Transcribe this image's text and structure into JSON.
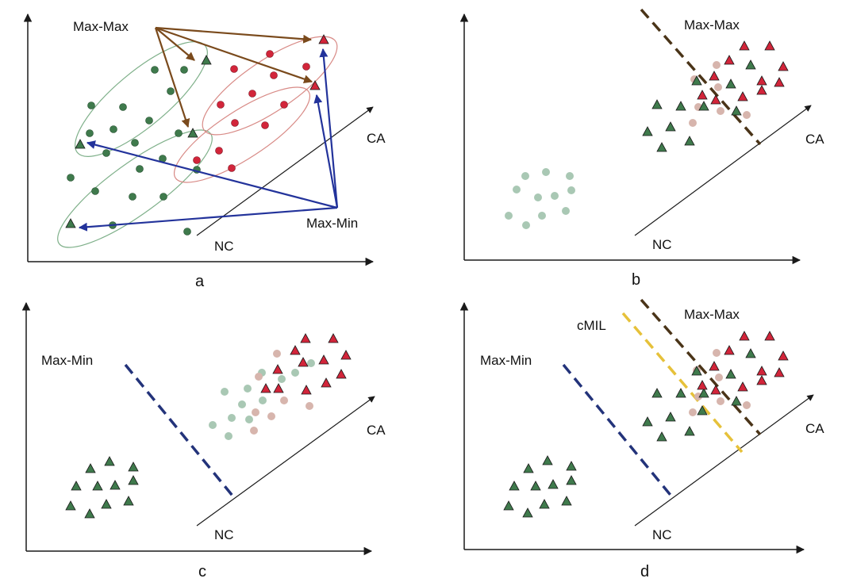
{
  "colors": {
    "axis": "#1a1a1a",
    "green_marker": "#3f7a4c",
    "red_marker": "#d2253a",
    "pale_green": "#a9c8b4",
    "pale_pink": "#d7b5ad",
    "maxmax_arrow": "#7a4a1c",
    "maxmin_arrow": "#23339b",
    "green_ellipse": "#7fb08a",
    "red_ellipse": "#d88a86",
    "maxmin_dash": "#23337a",
    "maxmax_dash": "#4a3418",
    "cmil_dash": "#e6c13a"
  },
  "panels": [
    {
      "id": "a",
      "caption": "a",
      "axis_labels": {
        "ca": "CA",
        "nc": "NC"
      },
      "annotations": {
        "maxmax": "Max-Max",
        "maxmin": "Max-Min"
      }
    },
    {
      "id": "b",
      "caption": "b",
      "axis_labels": {
        "ca": "CA",
        "nc": "NC"
      },
      "annotations": {
        "maxmax": "Max-Max"
      }
    },
    {
      "id": "c",
      "caption": "c",
      "axis_labels": {
        "ca": "CA",
        "nc": "NC"
      },
      "annotations": {
        "maxmin": "Max-Min"
      }
    },
    {
      "id": "d",
      "caption": "d",
      "axis_labels": {
        "ca": "CA",
        "nc": "NC"
      },
      "annotations": {
        "maxmin": "Max-Min",
        "maxmax": "Max-Max",
        "cmil": "cMIL"
      }
    }
  ]
}
